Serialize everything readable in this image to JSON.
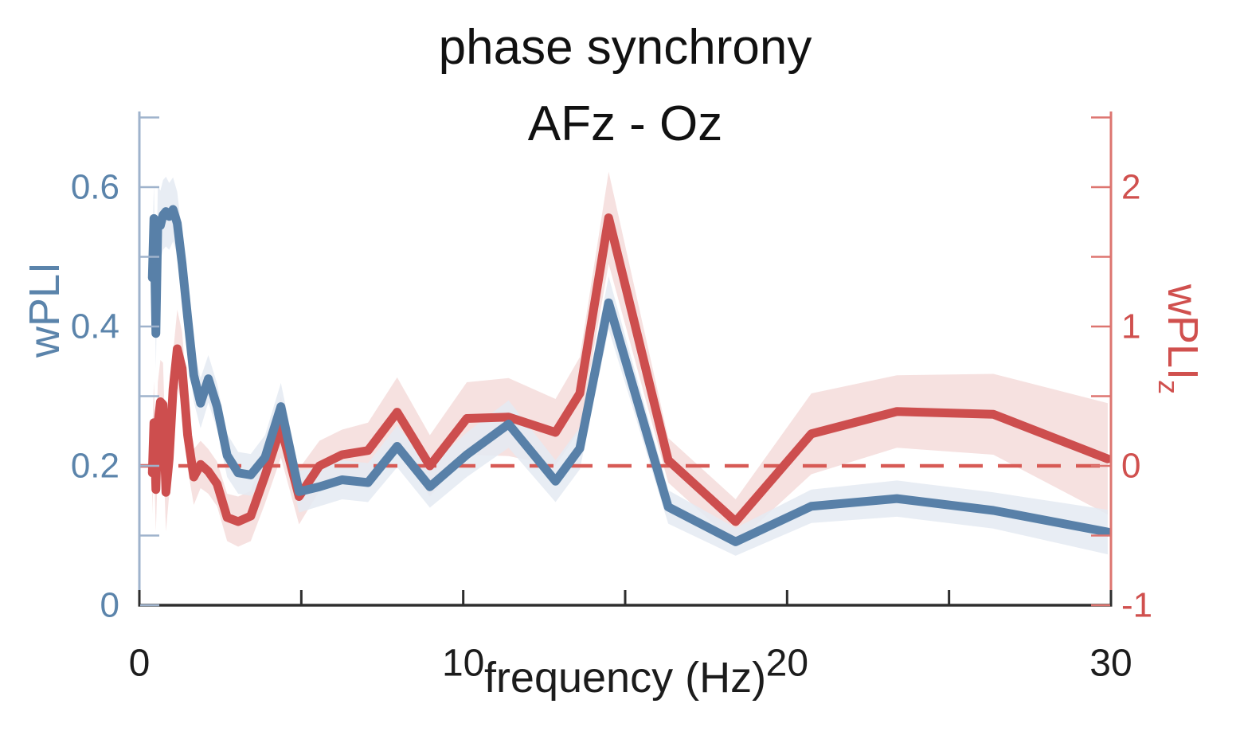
{
  "chart_data": {
    "type": "line",
    "title": {
      "line1": "phase synchrony",
      "line2": "AFz - Oz"
    },
    "axes": {
      "x": {
        "label": "frequency (Hz)",
        "min": 0,
        "max": 30,
        "major_ticks": [
          0,
          10,
          20,
          30
        ],
        "major_tick_labels": [
          "0",
          "10",
          "20",
          "30"
        ],
        "minor_ticks": [
          5,
          15,
          25
        ],
        "spine_color": "#2e2e2e",
        "text_color": "#1c1c1c",
        "grid": false
      },
      "left": {
        "label": "wPLI",
        "min": 0,
        "max": 0.71,
        "major_ticks": [
          0,
          0.2,
          0.4,
          0.6
        ],
        "major_tick_labels": [
          "0",
          "0.2",
          "0.4",
          "0.6"
        ],
        "minor_ticks": [
          0.1,
          0.3,
          0.5,
          0.7
        ],
        "spine_color": "#9fb3cc",
        "text_color": "#5b84ab"
      },
      "right": {
        "label": "wPLI",
        "label_subscript": "z",
        "min": -1,
        "max": 2.54,
        "major_ticks": [
          -1,
          0,
          1,
          2
        ],
        "major_tick_labels": [
          "-1",
          "0",
          "1",
          "2"
        ],
        "minor_ticks": [
          -0.5,
          0.5,
          1.5,
          2.5
        ],
        "spine_color": "#dd7570",
        "text_color": "#d0504e"
      }
    },
    "reference_line": {
      "axis": "right",
      "value": 0,
      "style": "dashed",
      "color": "#d75a55"
    },
    "x": [
      0.4,
      0.45,
      0.51,
      0.57,
      0.65,
      0.73,
      0.82,
      0.92,
      1.04,
      1.17,
      1.32,
      1.49,
      1.68,
      1.89,
      2.13,
      2.4,
      2.71,
      3.05,
      3.44,
      3.88,
      4.37,
      4.93,
      5.56,
      6.26,
      7.06,
      7.96,
      8.97,
      10.11,
      11.4,
      12.85,
      13.6,
      14.49,
      16.33,
      18.41,
      20.75,
      23.39,
      26.37,
      29.9
    ],
    "series": [
      {
        "name": "wPLI",
        "axis": "left",
        "color": "#5880a8",
        "band_color": "#e4eaf2",
        "band_opacity": 0.85,
        "values": [
          0.47,
          0.555,
          0.39,
          0.552,
          0.545,
          0.56,
          0.565,
          0.558,
          0.568,
          0.548,
          0.49,
          0.413,
          0.33,
          0.29,
          0.325,
          0.285,
          0.215,
          0.19,
          0.187,
          0.212,
          0.285,
          0.163,
          0.17,
          0.18,
          0.176,
          0.228,
          0.17,
          0.216,
          0.26,
          0.178,
          0.225,
          0.434,
          0.141,
          0.091,
          0.142,
          0.153,
          0.136,
          0.105
        ],
        "band_halfwidth": [
          0.05,
          0.05,
          0.05,
          0.05,
          0.05,
          0.05,
          0.05,
          0.048,
          0.046,
          0.045,
          0.042,
          0.04,
          0.038,
          0.036,
          0.034,
          0.033,
          0.031,
          0.03,
          0.03,
          0.032,
          0.034,
          0.03,
          0.028,
          0.028,
          0.028,
          0.03,
          0.03,
          0.032,
          0.034,
          0.03,
          0.03,
          0.038,
          0.024,
          0.02,
          0.024,
          0.026,
          0.026,
          0.032
        ]
      },
      {
        "name": "wPLI_z",
        "axis": "right",
        "color": "#cd4e4e",
        "band_color": "#f6e1e0",
        "band_opacity": 1,
        "values": [
          -0.05,
          0.31,
          -0.17,
          0.3,
          0.46,
          0.44,
          -0.19,
          0.05,
          0.55,
          0.84,
          0.7,
          0.22,
          -0.08,
          0.01,
          -0.04,
          -0.13,
          -0.37,
          -0.4,
          -0.36,
          -0.07,
          0.28,
          -0.22,
          0.0,
          0.08,
          0.11,
          0.385,
          0.0,
          0.34,
          0.35,
          0.24,
          0.52,
          1.78,
          0.04,
          -0.4,
          0.23,
          0.39,
          0.37,
          0.05
        ],
        "band_halfwidth": [
          0.3,
          0.3,
          0.3,
          0.3,
          0.3,
          0.3,
          0.28,
          0.26,
          0.26,
          0.28,
          0.26,
          0.24,
          0.2,
          0.17,
          0.16,
          0.16,
          0.17,
          0.18,
          0.18,
          0.2,
          0.22,
          0.2,
          0.18,
          0.18,
          0.2,
          0.25,
          0.22,
          0.26,
          0.28,
          0.24,
          0.26,
          0.33,
          0.16,
          0.16,
          0.29,
          0.26,
          0.29,
          0.4
        ]
      }
    ],
    "legend": {
      "visible": false
    }
  }
}
